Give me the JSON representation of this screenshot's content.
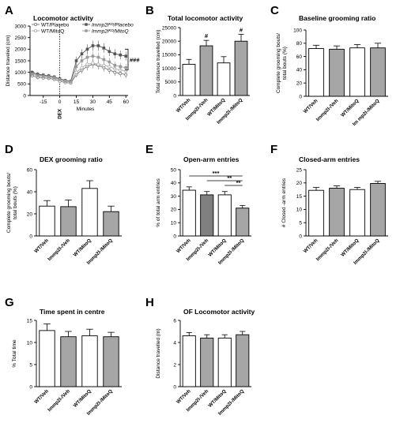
{
  "chart_data": [
    {
      "panel": "A",
      "type": "line",
      "title": "Locomotor activity",
      "xlabel": "Minutes",
      "ylabel": "Distance traveled (cm)",
      "xlim": [
        -27,
        62
      ],
      "ylim": [
        0,
        3000
      ],
      "xticks": [
        -15,
        0,
        15,
        30,
        45,
        60
      ],
      "yticks": [
        0,
        500,
        1000,
        1500,
        2000,
        2500,
        3000
      ],
      "annotation": "DEX",
      "significance": "###",
      "x": [
        -25,
        -20,
        -15,
        -10,
        -5,
        0,
        5,
        10,
        15,
        20,
        25,
        30,
        35,
        40,
        45,
        50,
        55,
        60
      ],
      "series": [
        {
          "name": "WT/Placebo",
          "marker": "circle-open",
          "color": "#777777",
          "values": [
            850,
            780,
            760,
            740,
            700,
            620,
            560,
            540,
            900,
            1100,
            1250,
            1350,
            1300,
            1200,
            1100,
            1000,
            950,
            900
          ],
          "errors": [
            80,
            80,
            70,
            70,
            70,
            60,
            60,
            60,
            120,
            150,
            170,
            180,
            180,
            170,
            160,
            150,
            150,
            150
          ]
        },
        {
          "name": "WT/MitoQ",
          "marker": "circle-open",
          "color": "#aaaaaa",
          "values": [
            950,
            880,
            860,
            830,
            780,
            700,
            620,
            600,
            1000,
            1200,
            1350,
            1400,
            1350,
            1300,
            1250,
            1150,
            1100,
            1050
          ],
          "errors": [
            90,
            90,
            80,
            80,
            80,
            70,
            70,
            70,
            130,
            160,
            170,
            180,
            180,
            170,
            170,
            160,
            160,
            160
          ]
        },
        {
          "name": "Immp2lᴷᴼ/Placebo",
          "marker": "square-filled",
          "color": "#555555",
          "values": [
            1000,
            920,
            880,
            850,
            800,
            720,
            650,
            620,
            1500,
            1800,
            2000,
            2150,
            2150,
            2050,
            1900,
            1800,
            1750,
            1700
          ],
          "errors": [
            90,
            90,
            80,
            80,
            80,
            70,
            70,
            70,
            180,
            200,
            210,
            220,
            220,
            210,
            200,
            200,
            190,
            190
          ]
        },
        {
          "name": "Immp2lᴷᴼ/MitoQ",
          "marker": "square-filled",
          "color": "#999999",
          "values": [
            920,
            850,
            820,
            800,
            760,
            690,
            620,
            600,
            1250,
            1500,
            1650,
            1700,
            1650,
            1550,
            1450,
            1300,
            1250,
            1200
          ],
          "errors": [
            90,
            90,
            80,
            80,
            80,
            70,
            70,
            70,
            160,
            180,
            190,
            200,
            200,
            190,
            180,
            170,
            170,
            170
          ]
        }
      ]
    },
    {
      "panel": "B",
      "type": "bar",
      "title": "Total locomotor activity",
      "ylabel": "Total distance travelled (cm)",
      "ylim": [
        0,
        25000
      ],
      "yticks": [
        0,
        5000,
        10000,
        15000,
        20000,
        25000
      ],
      "categories": [
        "WT/Veh",
        "Immp2l-/Veh",
        "WT/MitoQ",
        "Immp2l-/MitoQ"
      ],
      "values": [
        11500,
        18300,
        12000,
        20000
      ],
      "errors": [
        1800,
        2000,
        2300,
        2500
      ],
      "fills": [
        "#ffffff",
        "#a6a6a6",
        "#ffffff",
        "#a6a6a6"
      ],
      "marks": [
        "",
        "#",
        "",
        "#"
      ]
    },
    {
      "panel": "C",
      "type": "bar",
      "title": "Baseline grooming ratio",
      "ylabel": "Complete grooming bouts/ total bouts (%)",
      "ylim": [
        0,
        100
      ],
      "yticks": [
        0,
        20,
        40,
        60,
        80,
        100
      ],
      "categories": [
        "WT/Veh",
        "Immp2l-/Veh",
        "WT/MitoQ",
        "Im mp2l-/MitoQ"
      ],
      "values": [
        72,
        71,
        73,
        73
      ],
      "errors": [
        5,
        5,
        5,
        7
      ],
      "fills": [
        "#ffffff",
        "#a6a6a6",
        "#ffffff",
        "#a6a6a6"
      ]
    },
    {
      "panel": "D",
      "type": "bar",
      "title": "DEX grooming ratio",
      "ylabel": "Complete grooming bouts/ total bouts (%)",
      "ylim": [
        0,
        60
      ],
      "yticks": [
        0,
        20,
        40,
        60
      ],
      "categories": [
        "WT/Veh",
        "Immp2l-/Veh",
        "WT/MitoQ",
        "Immp2l-/MitoQ"
      ],
      "values": [
        27,
        26.5,
        43,
        22
      ],
      "errors": [
        5,
        6,
        7,
        5
      ],
      "fills": [
        "#ffffff",
        "#a6a6a6",
        "#ffffff",
        "#a6a6a6"
      ]
    },
    {
      "panel": "E",
      "type": "bar",
      "title": "Open-arm entries",
      "ylabel": "% of total arm entries",
      "ylim": [
        0,
        50
      ],
      "yticks": [
        0,
        10,
        20,
        30,
        40,
        50
      ],
      "categories": [
        "WT/Veh",
        "Immp2l-/Veh",
        "WT/MitoQ",
        "Immp2l-/MitoQ"
      ],
      "values": [
        34.5,
        31,
        31,
        21
      ],
      "errors": [
        2.5,
        2.5,
        2.5,
        2
      ],
      "fills": [
        "#ffffff",
        "#808080",
        "#ffffff",
        "#a6a6a6"
      ],
      "brackets": [
        {
          "from": 0,
          "to": 3,
          "label": "***"
        },
        {
          "from": 1,
          "to": 3,
          "label": "**"
        },
        {
          "from": 2,
          "to": 3,
          "label": "**"
        }
      ]
    },
    {
      "panel": "F",
      "type": "bar",
      "title": "Closed-arm entries",
      "ylabel": "# Closed -arm entries",
      "ylim": [
        0,
        25
      ],
      "yticks": [
        0,
        5,
        10,
        15,
        20,
        25
      ],
      "categories": [
        "WT/Veh",
        "Immp2l-/Veh",
        "WT/MitoQ",
        "Immp2l-/MitoQ"
      ],
      "values": [
        17.2,
        18,
        17.5,
        19.8
      ],
      "errors": [
        1.1,
        0.9,
        0.8,
        0.8
      ],
      "fills": [
        "#ffffff",
        "#a6a6a6",
        "#ffffff",
        "#a6a6a6"
      ]
    },
    {
      "panel": "G",
      "type": "bar",
      "title": "Time spent in centre",
      "ylabel": "% Total time",
      "ylim": [
        0,
        15
      ],
      "yticks": [
        0,
        5,
        10,
        15
      ],
      "categories": [
        "WT/Veh",
        "Immp2l-/Veh",
        "WT/MitoQ",
        "Immp2l-/MitoQ"
      ],
      "values": [
        12.7,
        11.3,
        11.5,
        11.3
      ],
      "errors": [
        1.5,
        1.2,
        1.5,
        1.0
      ],
      "fills": [
        "#ffffff",
        "#a6a6a6",
        "#ffffff",
        "#a6a6a6"
      ]
    },
    {
      "panel": "H",
      "type": "bar",
      "title": "OF Locomotor activity",
      "ylabel": "Distance travelled (m)",
      "ylim": [
        0,
        6
      ],
      "yticks": [
        0,
        2,
        4,
        6
      ],
      "categories": [
        "WT/Veh",
        "Immp2l-/Veh",
        "WT/MitoQ",
        "Immp2l-/MitoQ"
      ],
      "values": [
        4.6,
        4.4,
        4.4,
        4.7
      ],
      "errors": [
        0.3,
        0.3,
        0.3,
        0.3
      ],
      "fills": [
        "#ffffff",
        "#a6a6a6",
        "#ffffff",
        "#a6a6a6"
      ]
    }
  ]
}
